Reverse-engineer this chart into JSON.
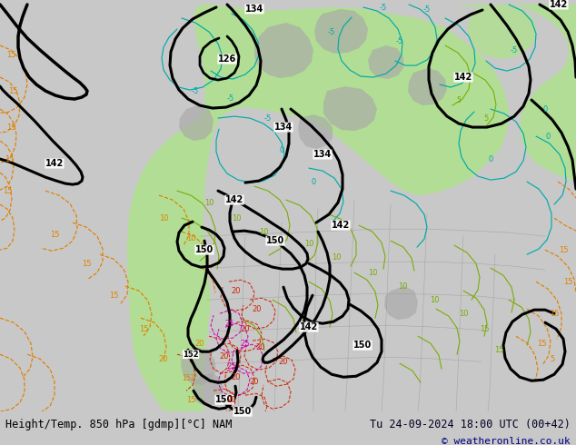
{
  "title_left": "Height/Temp. 850 hPa [gdmp][°C] NAM",
  "title_right": "Tu 24-09-2024 18:00 UTC (00+42)",
  "copyright": "© weatheronline.co.uk",
  "bg_color": "#c8c8c8",
  "map_bg": "#d8d8d8",
  "land_green": "#b0e090",
  "land_green2": "#c0e8a0",
  "land_gray": "#a8a8a8",
  "ocean_gray": "#d0d0d0",
  "bottom_bar_color": "#ffffff",
  "text_color_left": "#000000",
  "text_color_right": "#000022",
  "copyright_color": "#000080",
  "font_size_bottom": 8.5,
  "fig_width": 6.34,
  "fig_height": 4.9,
  "dpi": 100,
  "black_lw": 2.2,
  "temp_lw": 0.85,
  "cyan_color": "#00aaaa",
  "orange_color": "#e08000",
  "red_color": "#cc2200",
  "magenta_color": "#cc00aa",
  "green_temp_color": "#78aa00"
}
